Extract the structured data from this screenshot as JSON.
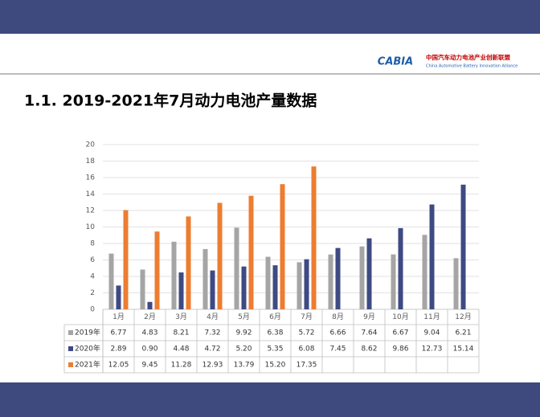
{
  "header": {
    "logo": "CABIA",
    "org_cn": "中国汽车动力电池产业创新联盟",
    "org_en": "China Automotive Battery Innovation Alliance"
  },
  "chart_data": {
    "type": "bar",
    "title": "1.1. 2019-2021年7月动力电池产量数据",
    "categories": [
      "1月",
      "2月",
      "3月",
      "4月",
      "5月",
      "6月",
      "7月",
      "8月",
      "9月",
      "10月",
      "11月",
      "12月"
    ],
    "series": [
      {
        "name": "2019年",
        "color": "#a5a5a5",
        "values": [
          6.77,
          4.83,
          8.21,
          7.32,
          9.92,
          6.38,
          5.72,
          6.66,
          7.64,
          6.67,
          9.04,
          6.21
        ],
        "value_labels": [
          "6.77",
          "4.83",
          "8.21",
          "7.32",
          "9.92",
          "6.38",
          "5.72",
          "6.66",
          "7.64",
          "6.67",
          "9.04",
          "6.21"
        ]
      },
      {
        "name": "2020年",
        "color": "#3e4a83",
        "values": [
          2.89,
          0.9,
          4.48,
          4.72,
          5.2,
          5.35,
          6.08,
          7.45,
          8.62,
          9.86,
          12.73,
          15.14
        ],
        "value_labels": [
          "2.89",
          "0.90",
          "4.48",
          "4.72",
          "5.20",
          "5.35",
          "6.08",
          "7.45",
          "8.62",
          "9.86",
          "12.73",
          "15.14"
        ]
      },
      {
        "name": "2021年",
        "color": "#ed7d31",
        "values": [
          12.05,
          9.45,
          11.28,
          12.93,
          13.79,
          15.2,
          17.35,
          null,
          null,
          null,
          null,
          null
        ],
        "value_labels": [
          "12.05",
          "9.45",
          "11.28",
          "12.93",
          "13.79",
          "15.20",
          "17.35",
          null,
          null,
          null,
          null,
          null
        ]
      }
    ],
    "ylim": [
      0,
      20
    ],
    "yticks": [
      0,
      2,
      4,
      6,
      8,
      10,
      12,
      14,
      16,
      18,
      20
    ],
    "grid": true
  }
}
